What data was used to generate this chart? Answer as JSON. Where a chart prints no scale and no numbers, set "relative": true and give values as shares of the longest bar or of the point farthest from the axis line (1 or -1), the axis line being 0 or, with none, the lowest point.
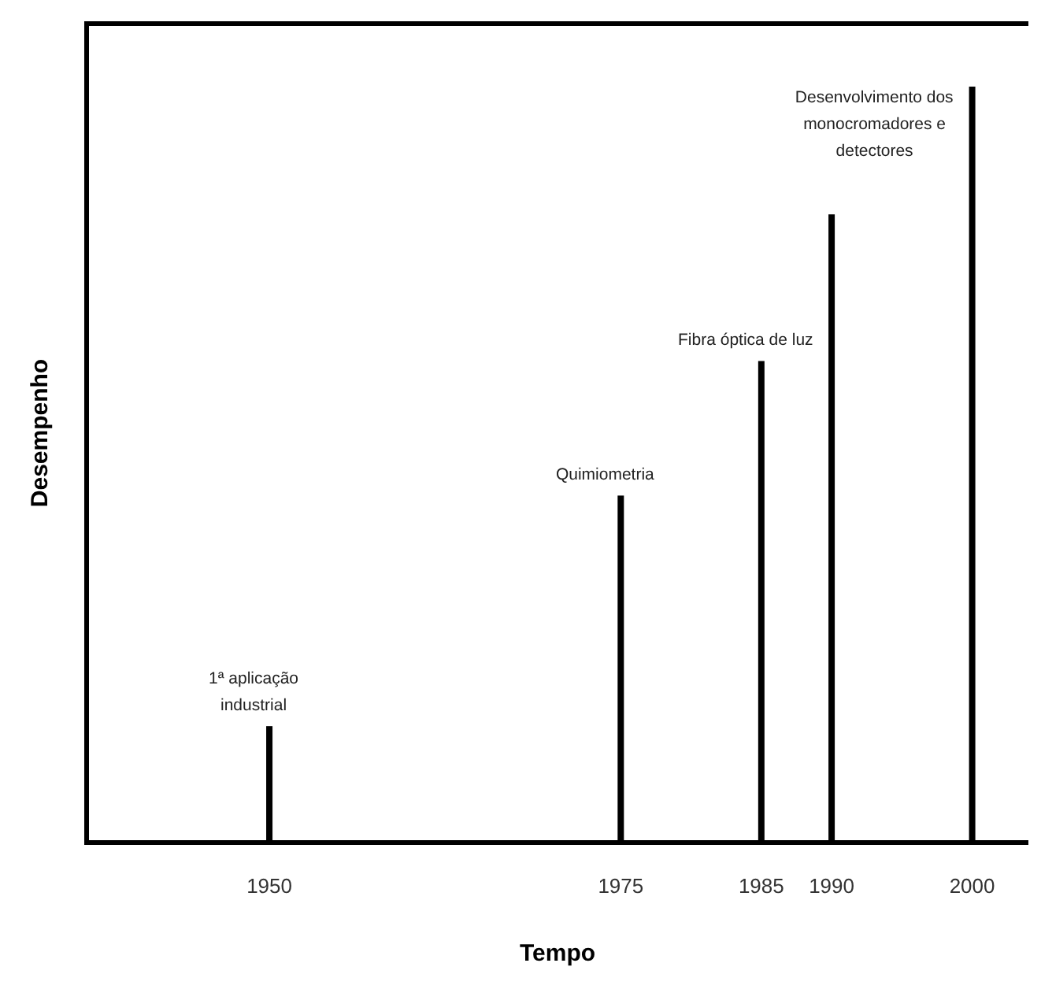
{
  "chart_data": {
    "type": "bar",
    "relative": true,
    "xlabel": "Tempo",
    "ylabel": "Desempenho",
    "color": "#000000",
    "x": [
      1950,
      1975,
      1985,
      1990,
      2000
    ],
    "values": [
      0.154,
      0.459,
      0.637,
      0.831,
      1
    ],
    "xlim": [
      1937,
      2004
    ],
    "xticks": [
      1950,
      1975,
      1985,
      1990,
      2000
    ],
    "annotations": [
      {
        "text": "1ª aplicação\nindustrial",
        "x": 1950,
        "y": 0.154
      },
      {
        "text": "Quimiometria",
        "x": 1975,
        "y": 0.459
      },
      {
        "text": "Fibra óptica de luz",
        "x": 1985,
        "y": 0.637
      },
      {
        "text": "Desenvolvimento dos\nmonocromadores e\ndetectores",
        "x": 2000,
        "y": 1
      }
    ]
  }
}
